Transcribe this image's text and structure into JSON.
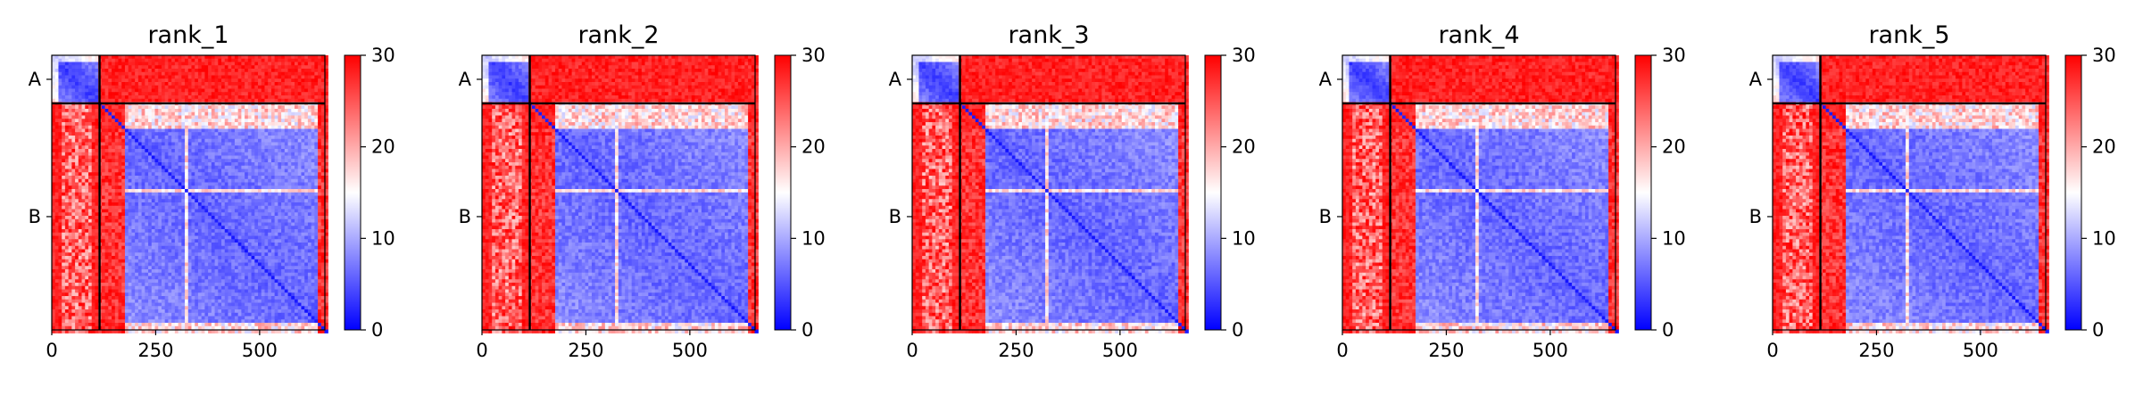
{
  "figure": {
    "background": "#ffffff"
  },
  "colormap": {
    "name": "bwr",
    "low": "#0000ff",
    "mid": "#ffffff",
    "high": "#ff0000",
    "vmin": 0,
    "vmax": 30,
    "ticks": [
      0,
      10,
      20,
      30
    ],
    "tick_labels": [
      "0",
      "10",
      "20",
      "30"
    ]
  },
  "chart_data": [
    {
      "type": "heatmap",
      "title": "rank_1",
      "xlim": [
        0,
        657
      ],
      "ylim": [
        657,
        0
      ],
      "x_ticks": [
        0,
        250,
        500
      ],
      "x_tick_labels": [
        "0",
        "250",
        "500"
      ],
      "chain_boundary": 115,
      "chains": [
        {
          "label": "A",
          "center": 57.5
        },
        {
          "label": "B",
          "center": 386
        }
      ],
      "colorbar": {
        "min": 0,
        "max": 30,
        "ticks": [
          0,
          10,
          20,
          30
        ]
      },
      "description_values": {
        "A_A_block_mean": 4,
        "B_B_core_range": [
          180,
          640
        ],
        "B_B_core_mean": 5,
        "inter_chain_mean": 30
      }
    },
    {
      "type": "heatmap",
      "title": "rank_2",
      "xlim": [
        0,
        657
      ],
      "ylim": [
        657,
        0
      ],
      "x_ticks": [
        0,
        250,
        500
      ],
      "x_tick_labels": [
        "0",
        "250",
        "500"
      ],
      "chain_boundary": 115,
      "chains": [
        {
          "label": "A",
          "center": 57.5
        },
        {
          "label": "B",
          "center": 386
        }
      ],
      "colorbar": {
        "min": 0,
        "max": 30,
        "ticks": [
          0,
          10,
          20,
          30
        ]
      },
      "description_values": {
        "A_A_block_mean": 4,
        "B_B_core_range": [
          180,
          640
        ],
        "B_B_core_mean": 5,
        "inter_chain_mean": 30
      }
    },
    {
      "type": "heatmap",
      "title": "rank_3",
      "xlim": [
        0,
        657
      ],
      "ylim": [
        657,
        0
      ],
      "x_ticks": [
        0,
        250,
        500
      ],
      "x_tick_labels": [
        "0",
        "250",
        "500"
      ],
      "chain_boundary": 115,
      "chains": [
        {
          "label": "A",
          "center": 57.5
        },
        {
          "label": "B",
          "center": 386
        }
      ],
      "colorbar": {
        "min": 0,
        "max": 30,
        "ticks": [
          0,
          10,
          20,
          30
        ]
      },
      "description_values": {
        "A_A_block_mean": 4,
        "B_B_core_range": [
          180,
          640
        ],
        "B_B_core_mean": 5,
        "inter_chain_mean": 30
      }
    },
    {
      "type": "heatmap",
      "title": "rank_4",
      "xlim": [
        0,
        657
      ],
      "ylim": [
        657,
        0
      ],
      "x_ticks": [
        0,
        250,
        500
      ],
      "x_tick_labels": [
        "0",
        "250",
        "500"
      ],
      "chain_boundary": 115,
      "chains": [
        {
          "label": "A",
          "center": 57.5
        },
        {
          "label": "B",
          "center": 386
        }
      ],
      "colorbar": {
        "min": 0,
        "max": 30,
        "ticks": [
          0,
          10,
          20,
          30
        ]
      },
      "description_values": {
        "A_A_block_mean": 4,
        "B_B_core_range": [
          180,
          640
        ],
        "B_B_core_mean": 5,
        "inter_chain_mean": 30
      }
    },
    {
      "type": "heatmap",
      "title": "rank_5",
      "xlim": [
        0,
        657
      ],
      "ylim": [
        657,
        0
      ],
      "x_ticks": [
        0,
        250,
        500
      ],
      "x_tick_labels": [
        "0",
        "250",
        "500"
      ],
      "chain_boundary": 115,
      "chains": [
        {
          "label": "A",
          "center": 57.5
        },
        {
          "label": "B",
          "center": 386
        }
      ],
      "colorbar": {
        "min": 0,
        "max": 30,
        "ticks": [
          0,
          10,
          20,
          30
        ]
      },
      "description_values": {
        "A_A_block_mean": 4,
        "B_B_core_range": [
          180,
          640
        ],
        "B_B_core_mean": 5,
        "inter_chain_mean": 30
      }
    }
  ]
}
